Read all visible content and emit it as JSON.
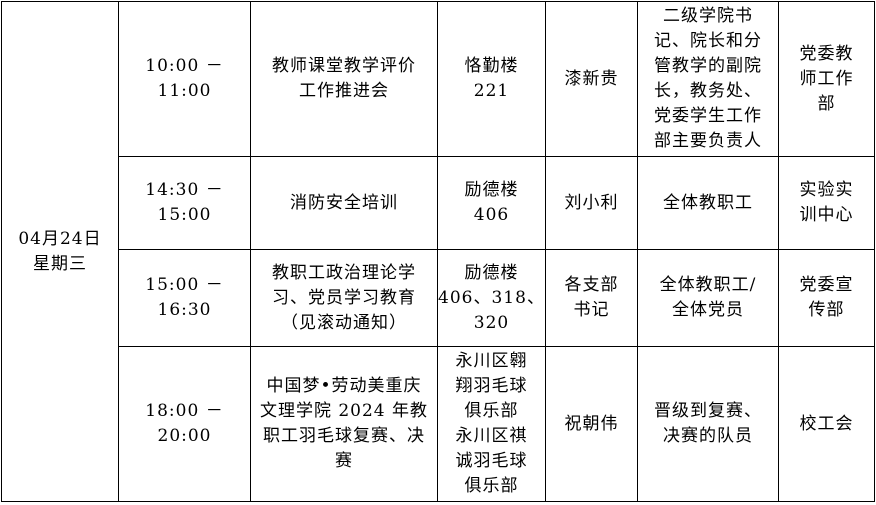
{
  "date_cell": "04月24日\n星期三",
  "rows": [
    {
      "time": "10:00 －\n11:00",
      "event": "教师课堂教学评价\n工作推进会",
      "location": "恪勤楼\n221",
      "host": "漆新贵",
      "participants": "二级学院书\n记、院长和分\n管教学的副院\n长，教务处、\n党委学生工作\n部主要负责人",
      "department": "党委教\n师工作\n部"
    },
    {
      "time": "14:30 －\n15:00",
      "event": "消防安全培训",
      "location": "励德楼\n406",
      "host": "刘小利",
      "participants": "全体教职工",
      "department": "实验实\n训中心"
    },
    {
      "time": "15:00 －\n16:30",
      "event": "教职工政治理论学\n习、党员学习教育\n（见滚动通知）",
      "location": "励德楼\n406、318、\n320",
      "host": "各支部\n书记",
      "participants": "全体教职工/\n全体党员",
      "department": "党委宣\n传部"
    },
    {
      "time": "18:00 －\n20:00",
      "event": "中国梦•劳动美重庆\n文理学院 2024 年教\n职工羽毛球复赛、决\n赛",
      "location": "永川区翱\n翔羽毛球\n俱乐部\n永川区祺\n诚羽毛球\n俱乐部",
      "host": "祝朝伟",
      "participants": "晋级到复赛、\n决赛的队员",
      "department": "校工会"
    }
  ]
}
